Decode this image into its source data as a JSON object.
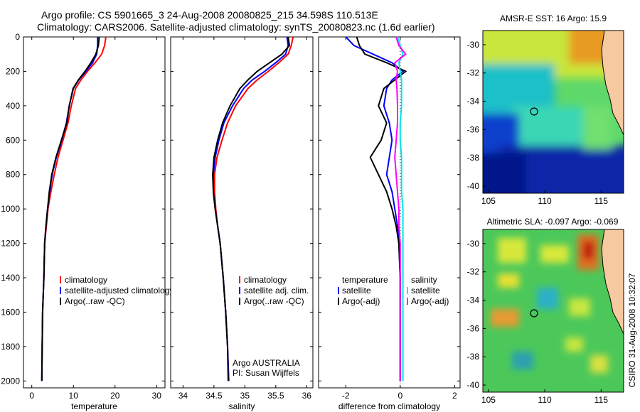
{
  "header": {
    "line1": "Argo profile: CS 5901665_3 24-Aug-2008 20080825_215 34.598S 110.513E",
    "line2": "Climatology: CARS2006. Satellite-adjusted climatology: synTS_20080823.nc (1.6d earlier)"
  },
  "colors": {
    "climatology": "#ff0000",
    "satellite": "#0000ff",
    "argo": "#000000",
    "sal_satellite": "#00e5ee",
    "sal_argo": "#ff00ff"
  },
  "chart_data": [
    {
      "type": "line",
      "id": "temperature",
      "xlabel": "temperature",
      "ylabel": "",
      "xlim": [
        -2,
        32
      ],
      "ylim": [
        2040,
        0
      ],
      "xticks": [
        0,
        10,
        20,
        30
      ],
      "yticks": [
        0,
        200,
        400,
        600,
        800,
        1000,
        1200,
        1400,
        1600,
        1800,
        2000
      ],
      "legend": [
        "climatology",
        "satellite-adjusted climatology",
        "Argo(..raw -QC)"
      ],
      "series": [
        {
          "name": "climatology",
          "color": "#ff0000",
          "x": [
            17.8,
            17.5,
            16.8,
            15.2,
            13.4,
            11.8,
            10.5,
            9.5,
            8.7,
            7.5,
            6.3,
            5.4,
            4.6,
            3.9,
            3.5,
            3.1,
            2.9,
            2.6,
            2.5,
            2.4
          ],
          "y": [
            0,
            50,
            100,
            150,
            200,
            250,
            300,
            400,
            500,
            600,
            700,
            800,
            900,
            1000,
            1100,
            1200,
            1400,
            1600,
            1800,
            2000
          ]
        },
        {
          "name": "satellite-adjusted climatology",
          "color": "#0000ff",
          "x": [
            15.8,
            15.8,
            15.6,
            14.6,
            13.0,
            11.3,
            10.0,
            9.0,
            8.3,
            7.2,
            5.9,
            4.9,
            4.3,
            3.8,
            3.4,
            3.1,
            2.9,
            2.6,
            2.5,
            2.4
          ],
          "y": [
            0,
            50,
            100,
            150,
            200,
            250,
            300,
            400,
            500,
            600,
            700,
            800,
            900,
            1000,
            1100,
            1200,
            1400,
            1600,
            1800,
            2000
          ]
        },
        {
          "name": "Argo(..raw -QC)",
          "color": "#000000",
          "x": [
            16.2,
            16.0,
            15.4,
            14.2,
            12.8,
            11.2,
            9.9,
            9.0,
            8.4,
            7.1,
            5.8,
            4.8,
            4.2,
            3.8,
            3.4,
            3.1,
            2.9,
            2.6,
            2.5,
            2.4
          ],
          "y": [
            0,
            50,
            100,
            150,
            200,
            250,
            300,
            400,
            500,
            600,
            700,
            800,
            900,
            1000,
            1100,
            1200,
            1400,
            1600,
            1800,
            2000
          ]
        }
      ]
    },
    {
      "type": "line",
      "id": "salinity",
      "xlabel": "salinity",
      "ylabel": "",
      "xlim": [
        33.8,
        36.1
      ],
      "ylim": [
        2040,
        0
      ],
      "xticks": [
        34,
        34.5,
        35,
        35.5,
        36
      ],
      "legend": [
        "climatology",
        "satellite adj. clim.",
        "Argo(..raw -QC)"
      ],
      "annotations": [
        "Argo AUSTRALIA",
        "PI: Susan Wijffels"
      ],
      "series": [
        {
          "name": "climatology",
          "color": "#ff0000",
          "x": [
            35.78,
            35.75,
            35.7,
            35.55,
            35.38,
            35.2,
            35.05,
            34.85,
            34.72,
            34.63,
            34.55,
            34.51,
            34.51,
            34.53,
            34.56,
            34.6,
            34.65,
            34.69,
            34.72,
            34.74
          ],
          "y": [
            0,
            50,
            100,
            150,
            200,
            250,
            300,
            400,
            500,
            600,
            700,
            800,
            900,
            1000,
            1100,
            1200,
            1400,
            1600,
            1800,
            2000
          ]
        },
        {
          "name": "satellite adj. clim.",
          "color": "#0000ff",
          "x": [
            35.68,
            35.7,
            35.66,
            35.5,
            35.32,
            35.12,
            34.98,
            34.8,
            34.66,
            34.58,
            34.52,
            34.49,
            34.49,
            34.52,
            34.56,
            34.6,
            34.65,
            34.69,
            34.72,
            34.74
          ],
          "y": [
            0,
            50,
            100,
            150,
            200,
            250,
            300,
            400,
            500,
            600,
            700,
            800,
            900,
            1000,
            1100,
            1200,
            1400,
            1600,
            1800,
            2000
          ]
        },
        {
          "name": "Argo(..raw -QC)",
          "color": "#000000",
          "x": [
            35.7,
            35.72,
            35.6,
            35.4,
            35.2,
            35.05,
            34.92,
            34.76,
            34.64,
            34.56,
            34.5,
            34.48,
            34.49,
            34.52,
            34.56,
            34.6,
            34.65,
            34.69,
            34.72,
            34.73
          ],
          "y": [
            0,
            50,
            100,
            150,
            200,
            250,
            300,
            400,
            500,
            600,
            700,
            800,
            900,
            1000,
            1100,
            1200,
            1400,
            1600,
            1800,
            2000
          ]
        }
      ]
    },
    {
      "type": "line",
      "id": "difference",
      "xlabel": "difference from climatology",
      "ylabel": "",
      "xlim": [
        -3,
        2.2
      ],
      "ylim": [
        2040,
        0
      ],
      "xticks": [
        -2,
        0,
        2
      ],
      "legend_groups": [
        {
          "title": "temperature",
          "items": [
            "satellite",
            "Argo(-adj)"
          ]
        },
        {
          "title": "salinity",
          "items": [
            "satellite",
            "Argo(-adj)"
          ]
        }
      ],
      "series": [
        {
          "name": "temperature satellite",
          "color": "#0000ff",
          "x": [
            -2.0,
            -1.7,
            -1.0,
            -0.3,
            0.1,
            -0.3,
            -0.5,
            -0.6,
            -0.4,
            -0.3,
            -0.4,
            -0.5,
            -0.3,
            -0.2,
            -0.1,
            -0.05,
            0.0,
            0.0,
            0.0,
            0.0
          ],
          "y": [
            0,
            50,
            100,
            150,
            200,
            250,
            300,
            400,
            500,
            600,
            700,
            800,
            900,
            1000,
            1100,
            1200,
            1400,
            1600,
            1800,
            2000
          ]
        },
        {
          "name": "temperature Argo(-adj)",
          "color": "#000000",
          "x": [
            -1.6,
            -1.5,
            -1.3,
            -0.5,
            0.2,
            -0.2,
            -0.6,
            -0.8,
            -0.5,
            -0.7,
            -1.1,
            -0.8,
            -0.5,
            -0.3,
            -0.15,
            -0.05,
            0.0,
            0.0,
            0.0,
            0.0
          ],
          "y": [
            0,
            50,
            100,
            150,
            200,
            250,
            300,
            400,
            500,
            600,
            700,
            800,
            900,
            1000,
            1100,
            1200,
            1400,
            1600,
            1800,
            2000
          ]
        },
        {
          "name": "salinity satellite",
          "color": "#00e5ee",
          "x": [
            -0.1,
            0.0,
            0.1,
            -0.05,
            0.0,
            0.05,
            0.05,
            0.05,
            0.0,
            0.0,
            0.05,
            0.05,
            0.05,
            0.1,
            0.1,
            0.1,
            0.1,
            0.1,
            0.1,
            0.1
          ],
          "y": [
            0,
            50,
            100,
            150,
            200,
            250,
            300,
            400,
            500,
            600,
            700,
            800,
            900,
            1000,
            1100,
            1200,
            1400,
            1600,
            1800,
            2000
          ]
        },
        {
          "name": "salinity Argo(-adj)",
          "color": "#ff00ff",
          "x": [
            -0.15,
            -0.05,
            0.2,
            -0.2,
            -0.1,
            -0.15,
            -0.12,
            -0.1,
            -0.1,
            -0.15,
            -0.2,
            -0.15,
            -0.1,
            -0.05,
            -0.05,
            0.0,
            0.0,
            0.0,
            0.0,
            0.0
          ],
          "y": [
            0,
            50,
            100,
            150,
            200,
            250,
            300,
            400,
            500,
            600,
            700,
            800,
            900,
            1000,
            1100,
            1200,
            1400,
            1600,
            1800,
            2000
          ]
        }
      ]
    },
    {
      "type": "heatmap",
      "id": "sst_map",
      "title": "AMSR-E SST: 16 Argo: 15.9",
      "xlim": [
        104.5,
        117
      ],
      "ylim": [
        -40.5,
        -29
      ],
      "xticks": [
        105,
        110,
        115
      ],
      "yticks": [
        -30,
        -32,
        -34,
        -36,
        -38,
        -40
      ],
      "marker": {
        "lon": 110.513,
        "lat": -34.598
      }
    },
    {
      "type": "heatmap",
      "id": "sla_map",
      "title": "Altimetric SLA: -0.097 Argo: -0.069",
      "xlim": [
        104.5,
        117
      ],
      "ylim": [
        -40.5,
        -29
      ],
      "xticks": [
        105,
        110,
        115
      ],
      "yticks": [
        -30,
        -32,
        -34,
        -36,
        -38,
        -40
      ],
      "marker": {
        "lon": 110.513,
        "lat": -34.598
      }
    }
  ],
  "watermark": "CSIRO 31-Aug-2008 10:32:07"
}
